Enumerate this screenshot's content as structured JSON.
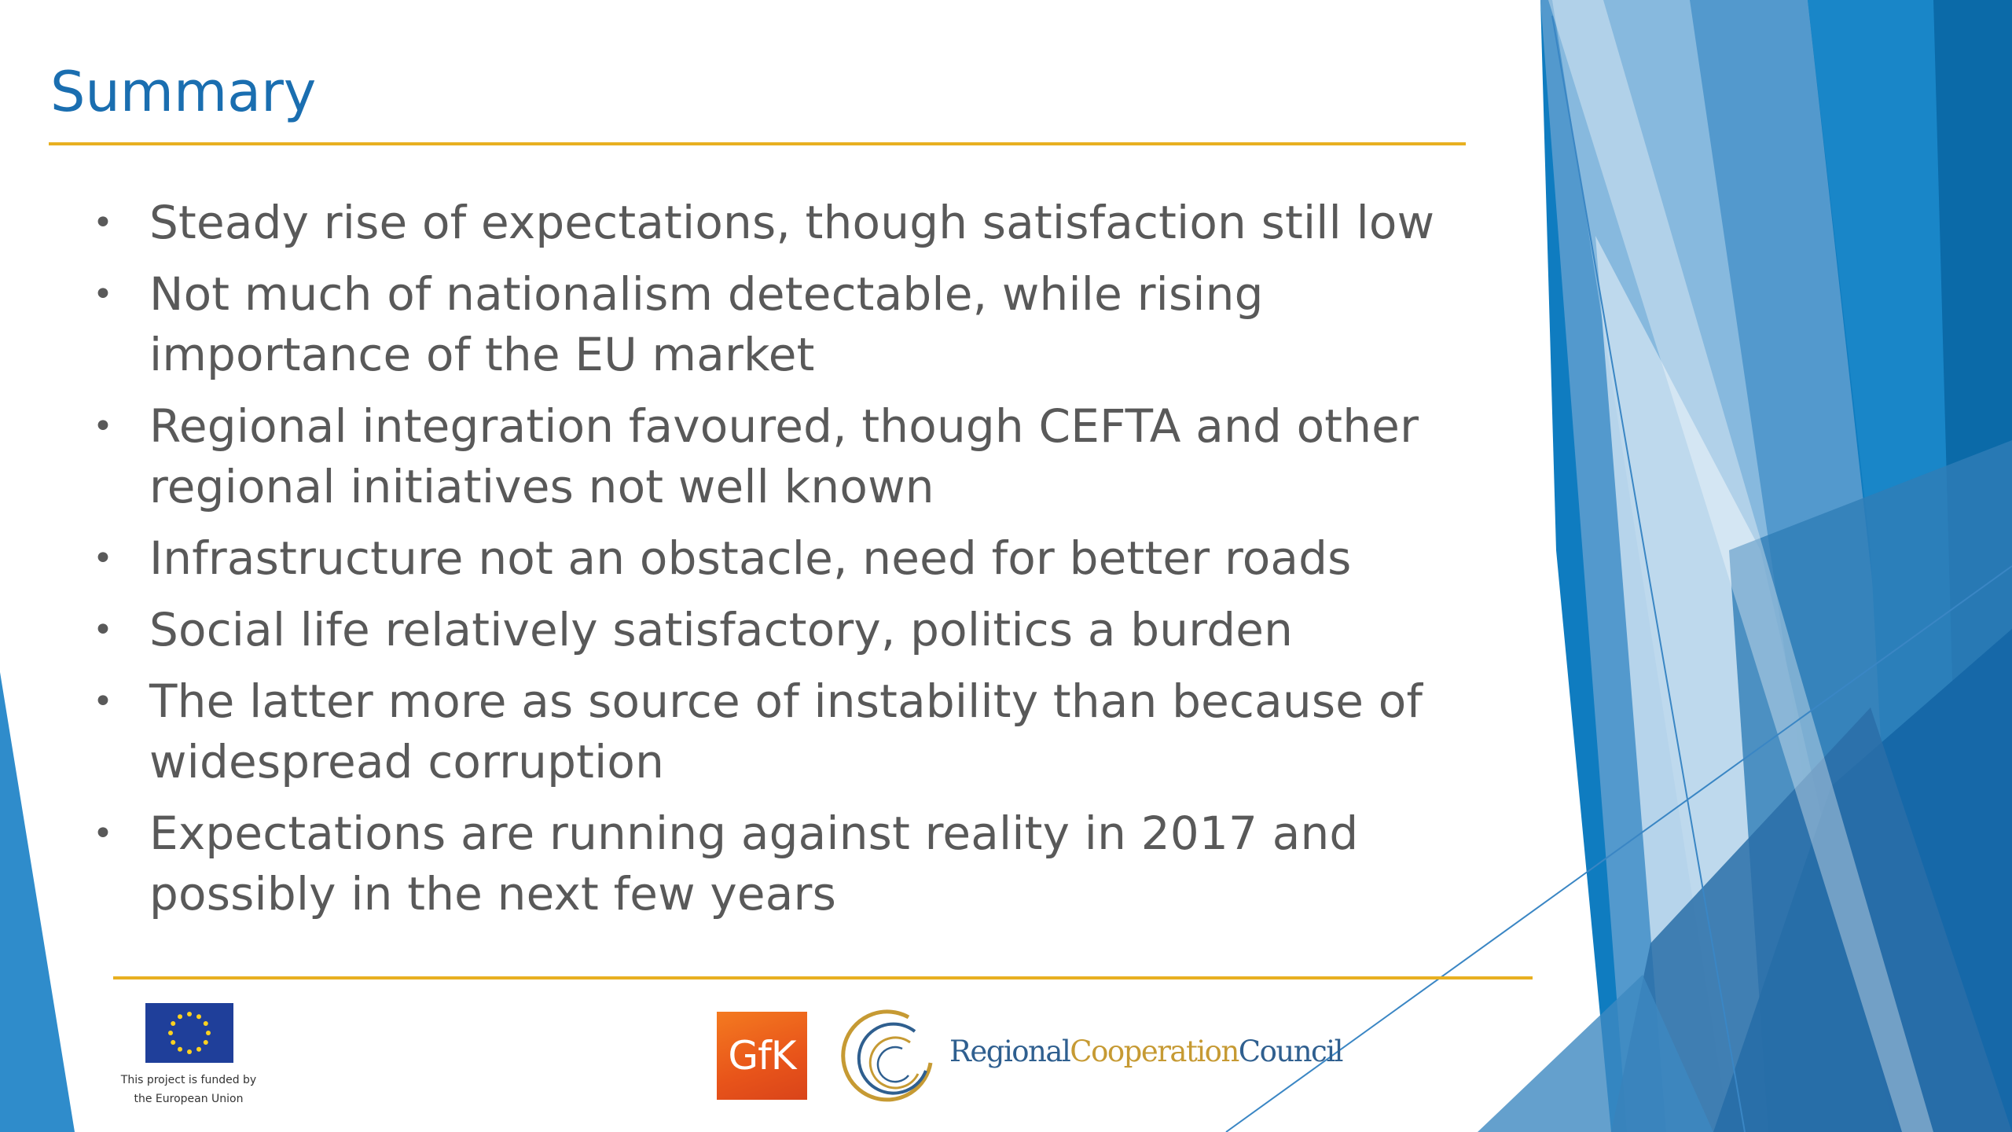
{
  "slide": {
    "title": "Summary",
    "bullets": [
      "Steady rise of expectations, though satisfaction still low",
      "Not much of nationalism detectable, while rising importance of the EU market",
      "Regional integration favoured, though CEFTA and other regional initiatives not well known",
      "Infrastructure not an obstacle, need for better roads",
      "Social life relatively satisfactory, politics a burden",
      "The latter more as source of instability than because of widespread corruption",
      "Expectations are running against reality in 2017 and possibly in the next few years"
    ]
  },
  "footer": {
    "eu_line1": "This project is funded by",
    "eu_line2": "the European Union",
    "gfk_logo": "GfK",
    "rcc_part1": "Regional",
    "rcc_part2": "Cooperation",
    "rcc_part3": "Council"
  },
  "icons": [
    "eu-flag-icon",
    "gfk-logo",
    "rcc-swirl-icon"
  ],
  "colors": {
    "title": "#1a6eb0",
    "rule": "#e8b021",
    "bullet_text": "#595959",
    "accent_blue": "#1b75bb",
    "gfk_orange": "#f47a20",
    "rcc_gold": "#c69a33",
    "rcc_blue": "#2f5f8f"
  }
}
